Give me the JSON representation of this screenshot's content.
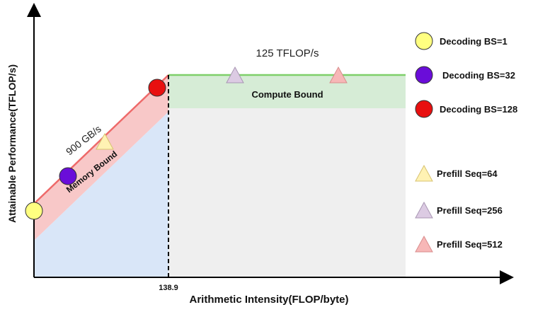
{
  "chart_data": {
    "type": "roofline",
    "ylabel": "Attainable Performance(TFLOP/s)",
    "xlabel": "Arithmetic Intensity(FLOP/byte)",
    "ridge_x_label": "138.9",
    "roof_label": "125 TFLOP/s",
    "slope_label": "900 GB/s",
    "regions": {
      "memory_bound": "Memory Bound",
      "compute_bound": "Compute Bound"
    },
    "series": [
      {
        "name": "Decoding BS=1",
        "marker": "circle",
        "color": "#ffff80"
      },
      {
        "name": "Decoding BS=32",
        "marker": "circle",
        "color": "#6a0dd9"
      },
      {
        "name": "Decoding BS=128",
        "marker": "circle",
        "color": "#e81010"
      },
      {
        "name": "Prefill Seq=64",
        "marker": "triangle",
        "color": "#fff2b3"
      },
      {
        "name": "Prefill Seq=256",
        "marker": "triangle",
        "color": "#dccbe3"
      },
      {
        "name": "Prefill Seq=512",
        "marker": "triangle",
        "color": "#f7b7b7"
      }
    ],
    "colors": {
      "memory_band": "#f8c8c8",
      "memory_area": "#d9e6f8",
      "compute_band": "#d6ecd6",
      "compute_area": "#efefef",
      "roof_line": "#7fcf6a",
      "slope_line": "#ee6a6a"
    }
  }
}
